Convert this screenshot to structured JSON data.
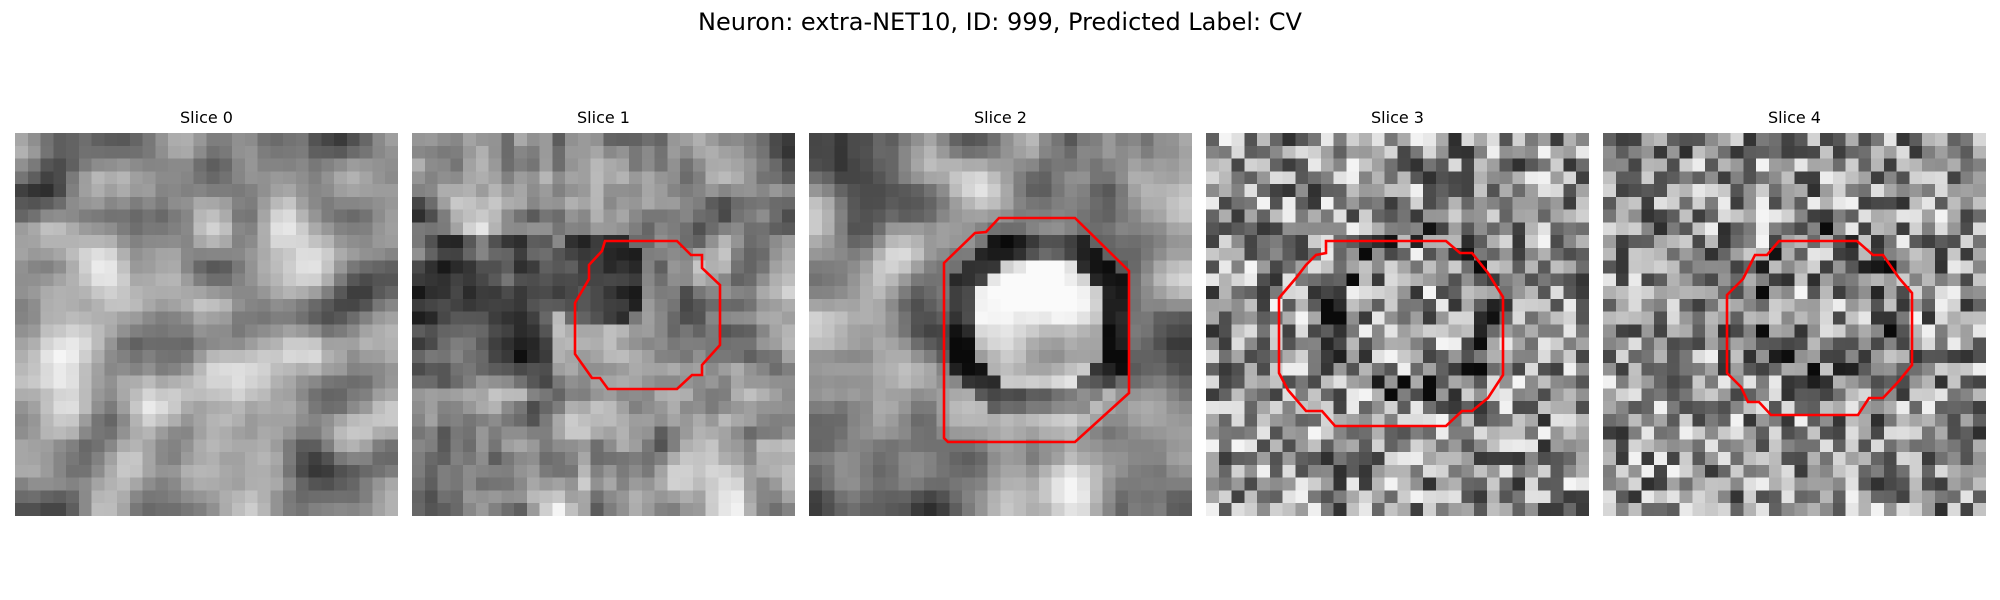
{
  "figure": {
    "title": "Neuron: extra-NET10, ID: 999, Predicted Label: CV",
    "contour_color": "#ff0000",
    "colormap": "grayscale"
  },
  "slices": [
    {
      "label": "Slice 0",
      "has_contour": false,
      "seed": 11,
      "blur": 2
    },
    {
      "label": "Slice 1",
      "has_contour": true,
      "seed": 23,
      "blur": 1
    },
    {
      "label": "Slice 2",
      "has_contour": true,
      "seed": 37,
      "blur": 2
    },
    {
      "label": "Slice 3",
      "has_contour": true,
      "seed": 41,
      "blur": 0
    },
    {
      "label": "Slice 4",
      "has_contour": true,
      "seed": 53,
      "blur": 0
    }
  ]
}
